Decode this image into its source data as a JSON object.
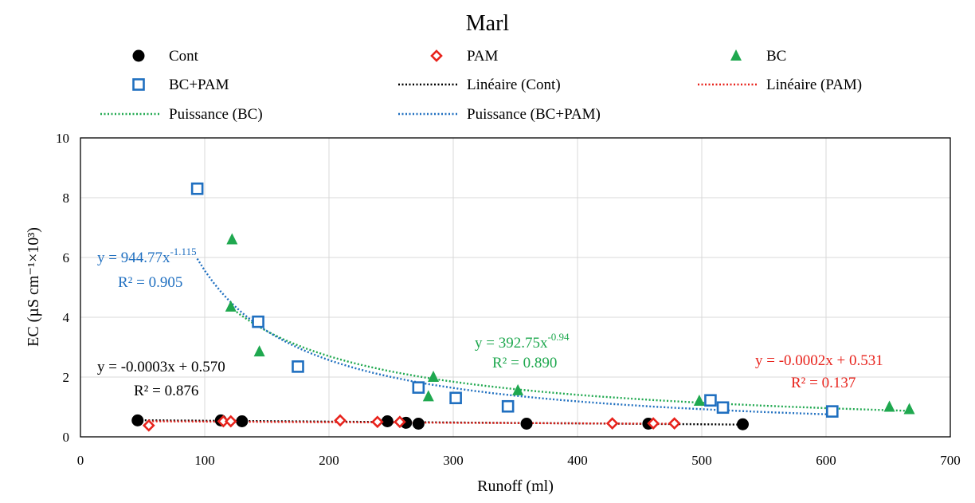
{
  "chart_data": {
    "type": "scatter",
    "title": "Marl",
    "xlabel": "Runoff (ml)",
    "ylabel": "EC (µS cm⁻¹×10³)",
    "xlim": [
      0,
      700
    ],
    "ylim": [
      0,
      10
    ],
    "xticks": [
      0,
      100,
      200,
      300,
      400,
      500,
      600,
      700
    ],
    "yticks": [
      0,
      2,
      4,
      6,
      8,
      10
    ],
    "grid": true,
    "legend_position": "top",
    "legend": [
      {
        "label": "Cont",
        "marker": "circle",
        "color": "#000000"
      },
      {
        "label": "PAM",
        "marker": "diamond-open",
        "color": "#e8231c"
      },
      {
        "label": "BC",
        "marker": "triangle",
        "color": "#1fa84f"
      },
      {
        "label": "BC+PAM",
        "marker": "square-open",
        "color": "#1f6fc0"
      },
      {
        "label": "Linéaire (Cont)",
        "marker": "dotted-line",
        "color": "#000000"
      },
      {
        "label": "Linéaire (PAM)",
        "marker": "dotted-line",
        "color": "#e8231c"
      },
      {
        "label": "Puissance (BC)",
        "marker": "dotted-line",
        "color": "#1fa84f"
      },
      {
        "label": "Puissance (BC+PAM)",
        "marker": "dotted-line",
        "color": "#1f6fc0"
      }
    ],
    "series": [
      {
        "name": "Cont",
        "color": "#000000",
        "marker": "circle",
        "points": [
          [
            46,
            0.55
          ],
          [
            113,
            0.55
          ],
          [
            130,
            0.52
          ],
          [
            247,
            0.52
          ],
          [
            262,
            0.47
          ],
          [
            272,
            0.44
          ],
          [
            359,
            0.44
          ],
          [
            457,
            0.44
          ],
          [
            533,
            0.42
          ]
        ]
      },
      {
        "name": "PAM",
        "color": "#e8231c",
        "marker": "diamond-open",
        "points": [
          [
            55,
            0.38
          ],
          [
            115,
            0.52
          ],
          [
            121,
            0.52
          ],
          [
            209,
            0.55
          ],
          [
            239,
            0.5
          ],
          [
            257,
            0.5
          ],
          [
            428,
            0.45
          ],
          [
            461,
            0.45
          ],
          [
            478,
            0.45
          ]
        ]
      },
      {
        "name": "BC",
        "color": "#1fa84f",
        "marker": "triangle",
        "points": [
          [
            122,
            6.6
          ],
          [
            121,
            4.35
          ],
          [
            144,
            2.85
          ],
          [
            280,
            1.35
          ],
          [
            284,
            2.0
          ],
          [
            352,
            1.55
          ],
          [
            498,
            1.2
          ],
          [
            651,
            1.0
          ],
          [
            667,
            0.92
          ]
        ]
      },
      {
        "name": "BC+PAM",
        "color": "#1f6fc0",
        "marker": "square-open",
        "points": [
          [
            94,
            8.3
          ],
          [
            143,
            3.85
          ],
          [
            175,
            2.35
          ],
          [
            272,
            1.65
          ],
          [
            302,
            1.3
          ],
          [
            344,
            1.02
          ],
          [
            507,
            1.22
          ],
          [
            517,
            0.98
          ],
          [
            605,
            0.85
          ]
        ]
      }
    ],
    "trendlines": [
      {
        "name": "Linéaire (Cont)",
        "type": "linear",
        "color": "#000000",
        "slope": -0.0003,
        "intercept": 0.57,
        "x_range": [
          46,
          533
        ],
        "equation": "y = -0.0003x + 0.570",
        "r2": "R² = 0.876"
      },
      {
        "name": "Linéaire (PAM)",
        "type": "linear",
        "color": "#e8231c",
        "slope": -0.0002,
        "intercept": 0.531,
        "x_range": [
          55,
          478
        ],
        "equation": "y = -0.0002x + 0.531",
        "r2": "R² = 0.137"
      },
      {
        "name": "Puissance (BC)",
        "type": "power",
        "color": "#1fa84f",
        "coef": 392.75,
        "exp": -0.94,
        "x_range": [
          121,
          667
        ],
        "equation_base": "y = 392.75x",
        "equation_exp": "-0.94",
        "r2": "R² = 0.890"
      },
      {
        "name": "Puissance (BC+PAM)",
        "type": "power",
        "color": "#1f6fc0",
        "coef": 944.77,
        "exp": -1.115,
        "x_range": [
          94,
          605
        ],
        "equation_base": "y = 944.77x",
        "equation_exp": "-1.115",
        "r2": "R² = 0.905"
      }
    ]
  }
}
